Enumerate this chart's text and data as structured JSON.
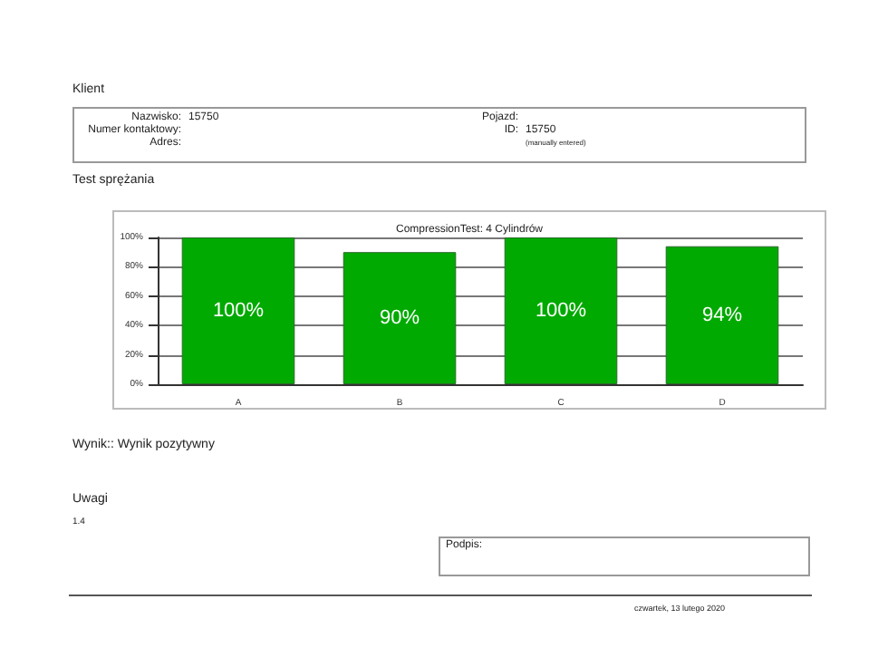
{
  "chart_data": {
    "type": "bar",
    "title": "CompressionTest: 4 Cylindrów",
    "categories": [
      "A",
      "B",
      "C",
      "D"
    ],
    "values": [
      100,
      90,
      100,
      94
    ],
    "value_labels": [
      "100%",
      "90%",
      "100%",
      "94%"
    ],
    "color": "#00aa00",
    "ylim": [
      0,
      100
    ],
    "yticks": [
      {
        "value": 0,
        "label": "0%"
      },
      {
        "value": 20,
        "label": "20%"
      },
      {
        "value": 40,
        "label": "40%"
      },
      {
        "value": 60,
        "label": "60%"
      },
      {
        "value": 80,
        "label": "80%"
      },
      {
        "value": 100,
        "label": "100%"
      }
    ],
    "grid": "y",
    "annotations": [
      "Klient",
      "Nazwisko:",
      "15750",
      "Numer kontaktowy:",
      "Adres:",
      "Pojazd:",
      "ID:",
      "15750",
      "(manually entered)",
      "Test sprężania",
      "Wynik:: Wynik pozytywny",
      "Uwagi",
      "1.4",
      "Podpis:",
      "czwartek, 13 lutego 2020"
    ]
  }
}
